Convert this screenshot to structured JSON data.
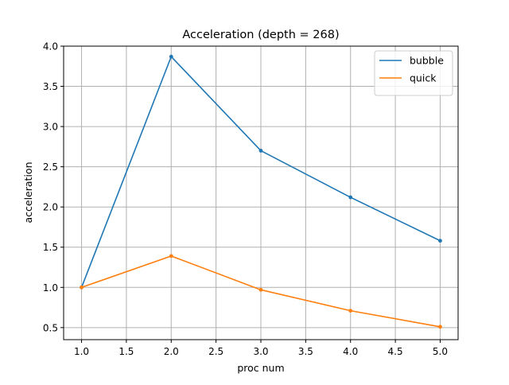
{
  "chart_data": {
    "type": "line",
    "title": "Acceleration (depth = 268)",
    "xlabel": "proc num",
    "ylabel": "acceleration",
    "x": [
      1.0,
      2.0,
      3.0,
      4.0,
      5.0
    ],
    "series": [
      {
        "name": "bubble",
        "color": "#1f77b4",
        "values": [
          1.0,
          3.87,
          2.7,
          2.12,
          1.58
        ]
      },
      {
        "name": "quick",
        "color": "#ff7f0e",
        "values": [
          1.0,
          1.39,
          0.97,
          0.71,
          0.51
        ]
      }
    ],
    "xlim": [
      0.8,
      5.2
    ],
    "ylim": [
      0.35,
      4.0
    ],
    "xticks": [
      "1.0",
      "1.5",
      "2.0",
      "2.5",
      "3.0",
      "3.5",
      "4.0",
      "4.5",
      "5.0"
    ],
    "yticks": [
      "0.5",
      "1.0",
      "1.5",
      "2.0",
      "2.5",
      "3.0",
      "3.5",
      "4.0"
    ],
    "grid": true,
    "legend_position": "top-right",
    "marker": "point"
  }
}
